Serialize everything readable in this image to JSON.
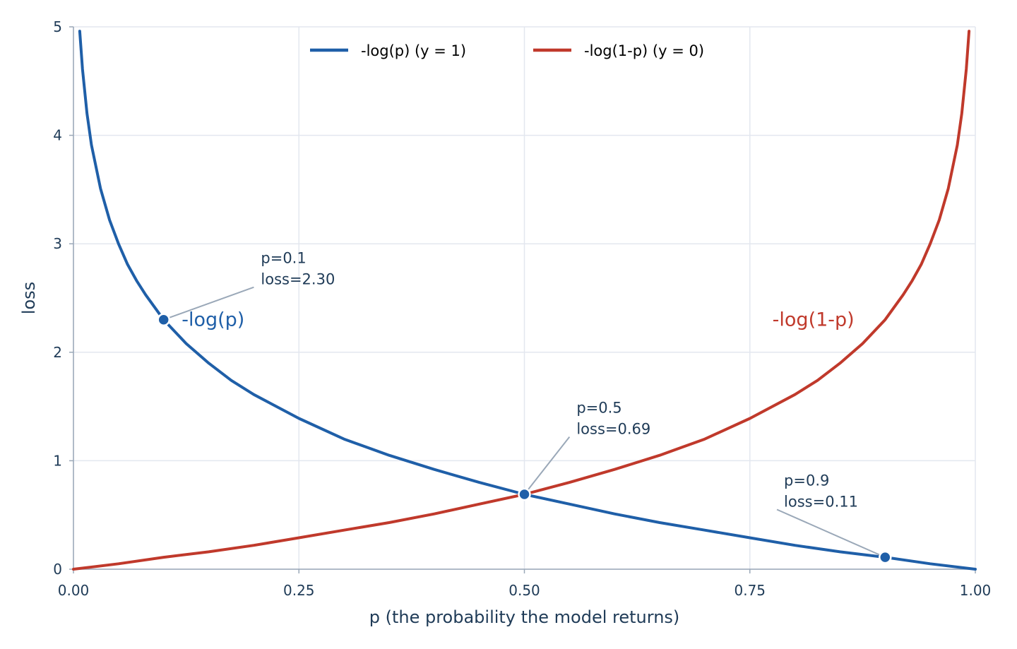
{
  "chart_data": {
    "type": "line",
    "xlabel": "p  (the probability the model returns)",
    "ylabel": "loss",
    "xlim": [
      0,
      1
    ],
    "ylim": [
      0,
      5
    ],
    "xticks": [
      {
        "value": 0,
        "label": "0.00"
      },
      {
        "value": 0.25,
        "label": "0.25"
      },
      {
        "value": 0.5,
        "label": "0.50"
      },
      {
        "value": 0.75,
        "label": "0.75"
      },
      {
        "value": 1,
        "label": "1.00"
      }
    ],
    "yticks": [
      {
        "value": 0,
        "label": "0"
      },
      {
        "value": 1,
        "label": "1"
      },
      {
        "value": 2,
        "label": "2"
      },
      {
        "value": 3,
        "label": "3"
      },
      {
        "value": 4,
        "label": "4"
      },
      {
        "value": 5,
        "label": "5"
      }
    ],
    "grid": true,
    "legend": {
      "placement": "top-center",
      "entries": [
        "-log(p)   (y = 1)",
        "-log(1-p)   (y = 0)"
      ]
    },
    "series": [
      {
        "name": "-log(p)   (y = 1)",
        "inline_label": "-log(p)",
        "color": "#1f5fa8",
        "x": [
          0.007,
          0.01,
          0.015,
          0.02,
          0.03,
          0.04,
          0.05,
          0.06,
          0.07,
          0.08,
          0.1,
          0.125,
          0.15,
          0.175,
          0.2,
          0.25,
          0.3,
          0.35,
          0.4,
          0.45,
          0.5,
          0.55,
          0.6,
          0.65,
          0.7,
          0.75,
          0.8,
          0.85,
          0.9,
          0.95,
          1.0
        ],
        "y": [
          4.96,
          4.61,
          4.2,
          3.91,
          3.51,
          3.22,
          3.0,
          2.81,
          2.66,
          2.53,
          2.3,
          2.08,
          1.9,
          1.74,
          1.61,
          1.39,
          1.2,
          1.05,
          0.92,
          0.8,
          0.69,
          0.6,
          0.51,
          0.43,
          0.36,
          0.29,
          0.22,
          0.16,
          0.11,
          0.05,
          0.0
        ]
      },
      {
        "name": "-log(1-p)   (y = 0)",
        "inline_label": "-log(1-p)",
        "color": "#c0392b",
        "x": [
          0.0,
          0.05,
          0.1,
          0.15,
          0.2,
          0.25,
          0.3,
          0.35,
          0.4,
          0.45,
          0.5,
          0.55,
          0.6,
          0.65,
          0.7,
          0.75,
          0.8,
          0.825,
          0.85,
          0.875,
          0.9,
          0.92,
          0.93,
          0.94,
          0.95,
          0.96,
          0.97,
          0.98,
          0.985,
          0.99,
          0.993
        ],
        "y": [
          0.0,
          0.05,
          0.11,
          0.16,
          0.22,
          0.29,
          0.36,
          0.43,
          0.51,
          0.6,
          0.69,
          0.8,
          0.92,
          1.05,
          1.2,
          1.39,
          1.61,
          1.74,
          1.9,
          2.08,
          2.3,
          2.53,
          2.66,
          2.81,
          3.0,
          3.22,
          3.51,
          3.91,
          4.2,
          4.61,
          4.96
        ]
      }
    ],
    "points": [
      {
        "x": 0.1,
        "y": 2.3,
        "text1": "p=0.1",
        "text2": "loss=2.30",
        "tx": 0.2,
        "ty": 2.6
      },
      {
        "x": 0.5,
        "y": 0.69,
        "text1": "p=0.5",
        "text2": "loss=0.69",
        "tx": 0.55,
        "ty": 1.22
      },
      {
        "x": 0.9,
        "y": 0.11,
        "text1": "p=0.9",
        "text2": "loss=0.11",
        "tx": 0.78,
        "ty": 0.55
      }
    ],
    "inline_label_positions": [
      {
        "x": 0.12,
        "y": 2.3
      },
      {
        "x": 0.775,
        "y": 2.3
      }
    ]
  }
}
